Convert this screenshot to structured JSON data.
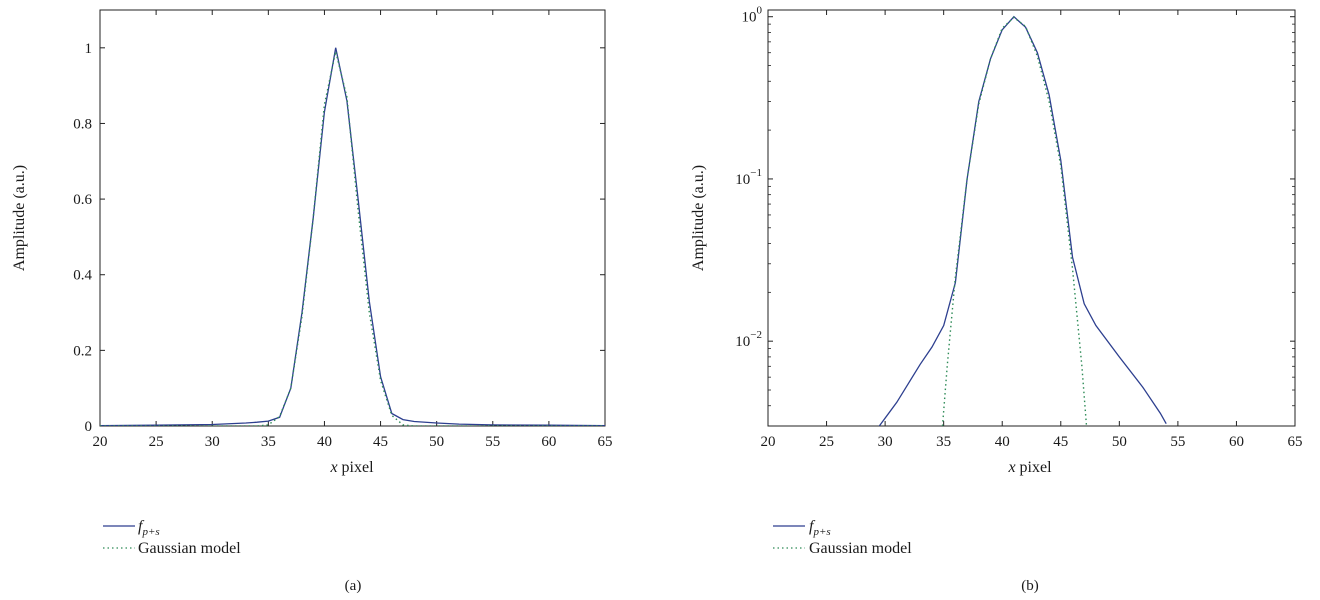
{
  "colors": {
    "series_solid": "#2d3f8f",
    "series_dotted": "#2e8b57",
    "axis": "#222222"
  },
  "chart_data": [
    {
      "id": "a",
      "type": "line",
      "caption": "(a)",
      "xlabel_var": "x",
      "xlabel_rest": " pixel",
      "ylabel": "Amplitude (a.u.)",
      "xlim": [
        20,
        65
      ],
      "ylim": [
        0,
        1.1
      ],
      "yscale": "linear",
      "xticks": [
        20,
        25,
        30,
        35,
        40,
        45,
        50,
        55,
        60,
        65
      ],
      "xtick_labels": [
        "20",
        "25",
        "30",
        "35",
        "40",
        "45",
        "50",
        "55",
        "60",
        "65"
      ],
      "yticks": [
        0,
        0.2,
        0.4,
        0.6,
        0.8,
        1
      ],
      "ytick_labels": [
        "0",
        "0.2",
        "0.4",
        "0.6",
        "0.8",
        "1"
      ],
      "grid": false,
      "legend": {
        "placement": "below",
        "entries": [
          "f_{p+s}",
          "Gaussian model"
        ]
      },
      "series": [
        {
          "name": "f_{p+s}",
          "style": "solid",
          "x": [
            20,
            25,
            30,
            33,
            34,
            35,
            36,
            37,
            38,
            39,
            40,
            41,
            42,
            43,
            44,
            45,
            46,
            47,
            48,
            50,
            52,
            55,
            60,
            65
          ],
          "y": [
            0.001,
            0.002,
            0.004,
            0.008,
            0.01,
            0.013,
            0.023,
            0.1,
            0.3,
            0.55,
            0.83,
            1.0,
            0.86,
            0.6,
            0.33,
            0.13,
            0.033,
            0.017,
            0.012,
            0.008,
            0.005,
            0.003,
            0.002,
            0.001
          ]
        },
        {
          "name": "Gaussian model",
          "style": "dotted",
          "x": [
            20,
            30,
            34,
            35,
            36,
            37,
            38,
            39,
            40,
            41,
            42,
            43,
            44,
            45,
            46,
            47,
            48,
            55,
            65
          ],
          "y": [
            0,
            0,
            0,
            0.003,
            0.025,
            0.1,
            0.29,
            0.55,
            0.85,
            0.99,
            0.87,
            0.57,
            0.3,
            0.12,
            0.028,
            0.003,
            0,
            0,
            0
          ]
        }
      ]
    },
    {
      "id": "b",
      "type": "line",
      "caption": "(b)",
      "xlabel_var": "x",
      "xlabel_rest": " pixel",
      "ylabel": "Amplitude (a.u.)",
      "xlim": [
        20,
        65
      ],
      "ylim": [
        0.003,
        1.1
      ],
      "yscale": "log",
      "xticks": [
        20,
        25,
        30,
        35,
        40,
        45,
        50,
        55,
        60,
        65
      ],
      "xtick_labels": [
        "20",
        "25",
        "30",
        "35",
        "40",
        "45",
        "50",
        "55",
        "60",
        "65"
      ],
      "yticks": [
        1,
        0.1,
        0.01
      ],
      "ytick_bases": [
        "10",
        "10",
        "10"
      ],
      "ytick_exps": [
        "0",
        "−1",
        "−2"
      ],
      "grid": false,
      "legend": {
        "placement": "below",
        "entries": [
          "f_{p+s}",
          "Gaussian model"
        ]
      },
      "series": [
        {
          "name": "f_{p+s}",
          "style": "solid",
          "x": [
            29.5,
            31,
            32,
            33,
            34,
            35,
            36,
            37,
            38,
            39,
            40,
            41,
            42,
            43,
            44,
            45,
            46,
            47,
            48,
            50,
            52,
            53.5,
            54
          ],
          "y": [
            0.003,
            0.0042,
            0.0055,
            0.0072,
            0.0092,
            0.0125,
            0.023,
            0.1,
            0.3,
            0.55,
            0.83,
            1.0,
            0.86,
            0.6,
            0.33,
            0.13,
            0.033,
            0.017,
            0.0125,
            0.008,
            0.0052,
            0.0036,
            0.0031
          ]
        },
        {
          "name": "Gaussian model",
          "style": "dotted",
          "x": [
            34.9,
            35.3,
            36,
            37,
            38,
            39,
            40,
            41,
            42,
            43,
            44,
            45,
            46,
            46.8,
            47.2
          ],
          "y": [
            0.003,
            0.007,
            0.025,
            0.1,
            0.29,
            0.55,
            0.85,
            0.99,
            0.87,
            0.57,
            0.3,
            0.12,
            0.028,
            0.007,
            0.003
          ]
        }
      ]
    }
  ]
}
